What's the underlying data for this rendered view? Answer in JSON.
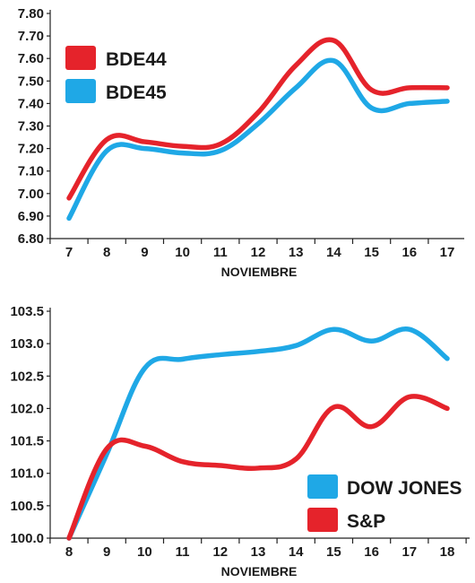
{
  "colors": {
    "red": "#e5232b",
    "blue": "#1fa8e6"
  },
  "chart_data": [
    {
      "type": "line",
      "x": [
        7,
        8,
        9,
        10,
        11,
        12,
        13,
        14,
        15,
        16,
        17
      ],
      "xlabel": "NOVIEMBRE",
      "ylim": [
        6.8,
        7.8
      ],
      "yticks": [
        "6.80",
        "6.90",
        "7.00",
        "7.10",
        "7.20",
        "7.30",
        "7.40",
        "7.50",
        "7.60",
        "7.70",
        "7.80"
      ],
      "xticks": [
        "7",
        "8",
        "9",
        "10",
        "11",
        "12",
        "13",
        "14",
        "15",
        "16",
        "17"
      ],
      "grid": false,
      "legend_position": "top-left",
      "series": [
        {
          "name": "BDE44",
          "color": "#e5232b",
          "values": [
            6.98,
            7.24,
            7.23,
            7.21,
            7.22,
            7.36,
            7.57,
            7.68,
            7.46,
            7.47,
            7.47
          ]
        },
        {
          "name": "BDE45",
          "color": "#1fa8e6",
          "values": [
            6.89,
            7.19,
            7.2,
            7.18,
            7.19,
            7.31,
            7.47,
            7.59,
            7.38,
            7.4,
            7.41
          ]
        }
      ]
    },
    {
      "type": "line",
      "x": [
        8,
        9,
        10,
        11,
        12,
        13,
        14,
        15,
        16,
        17,
        18
      ],
      "xlabel": "NOVIEMBRE",
      "ylim": [
        100.0,
        103.5
      ],
      "yticks": [
        "100.0",
        "100.5",
        "101.0",
        "101.5",
        "102.0",
        "102.5",
        "103.0",
        "103.5"
      ],
      "xticks": [
        "8",
        "9",
        "10",
        "11",
        "12",
        "13",
        "14",
        "15",
        "16",
        "17",
        "18"
      ],
      "grid": false,
      "legend_position": "bottom-right",
      "series": [
        {
          "name": "DOW JONES",
          "color": "#1fa8e6",
          "values": [
            100.0,
            101.3,
            102.62,
            102.76,
            102.83,
            102.88,
            102.97,
            103.22,
            103.04,
            103.22,
            102.77
          ]
        },
        {
          "name": "S&P",
          "color": "#e5232b",
          "values": [
            100.0,
            101.38,
            101.42,
            101.18,
            101.12,
            101.08,
            101.22,
            102.02,
            101.72,
            102.18,
            102.0
          ]
        }
      ]
    }
  ]
}
